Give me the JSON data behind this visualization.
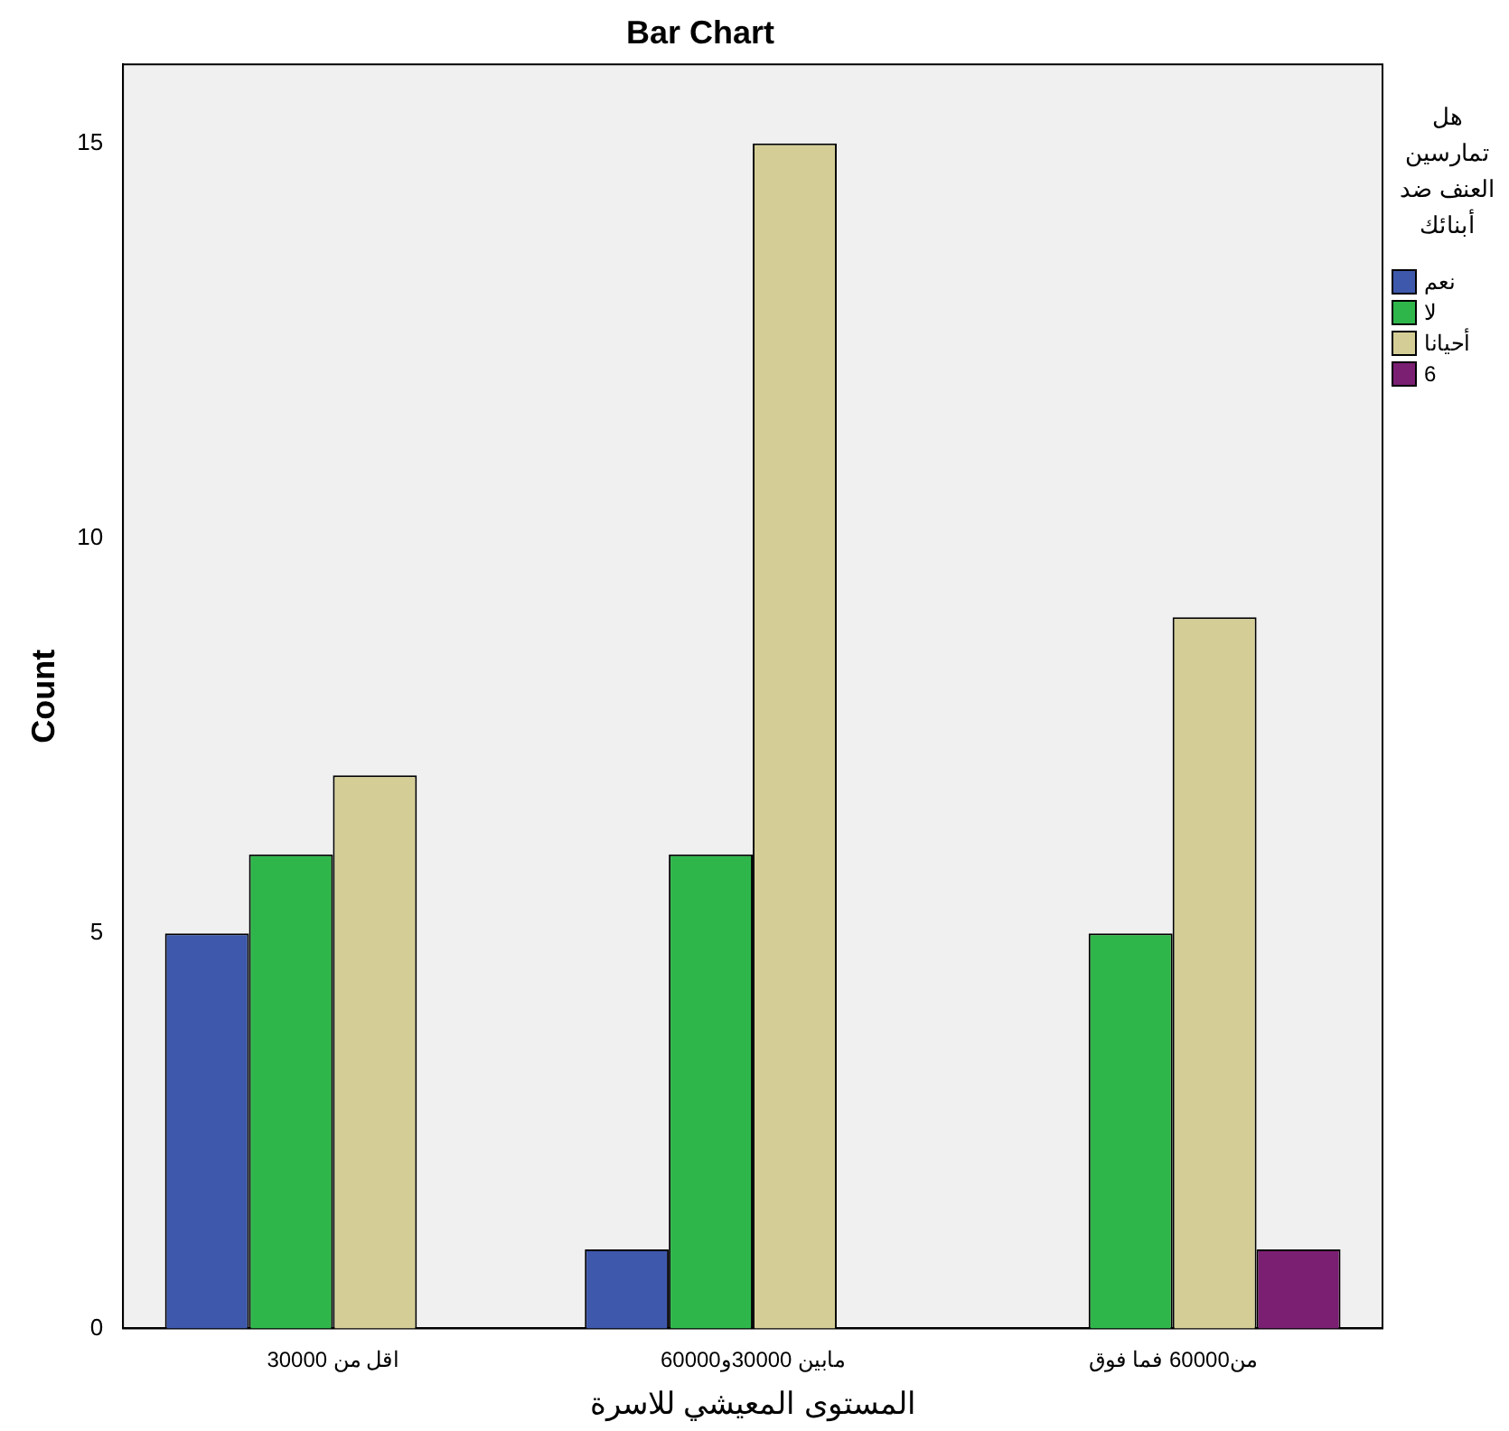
{
  "chart_data": {
    "type": "bar",
    "title": "Bar Chart",
    "xlabel": "المستوى المعيشي للاسرة",
    "ylabel": "Count",
    "legend_title": "هل تمارسين العنف ضد أبنائك",
    "categories": [
      "اقل من 30000",
      "مابين 30000و60000",
      "من60000 فما فوق"
    ],
    "series": [
      {
        "name": "نعم",
        "color": "#3e58ac",
        "values": [
          5,
          1,
          null
        ]
      },
      {
        "name": "لا",
        "color": "#2fb64a",
        "values": [
          6,
          6,
          5
        ]
      },
      {
        "name": "أحيانا",
        "color": "#d4ce96",
        "values": [
          7,
          15,
          9
        ]
      },
      {
        "name": "6",
        "color": "#7b1f72",
        "values": [
          null,
          null,
          1
        ]
      }
    ],
    "ylim": [
      0,
      16
    ],
    "yticks": [
      0,
      5,
      10,
      15
    ],
    "grid": false,
    "legend": "right"
  }
}
